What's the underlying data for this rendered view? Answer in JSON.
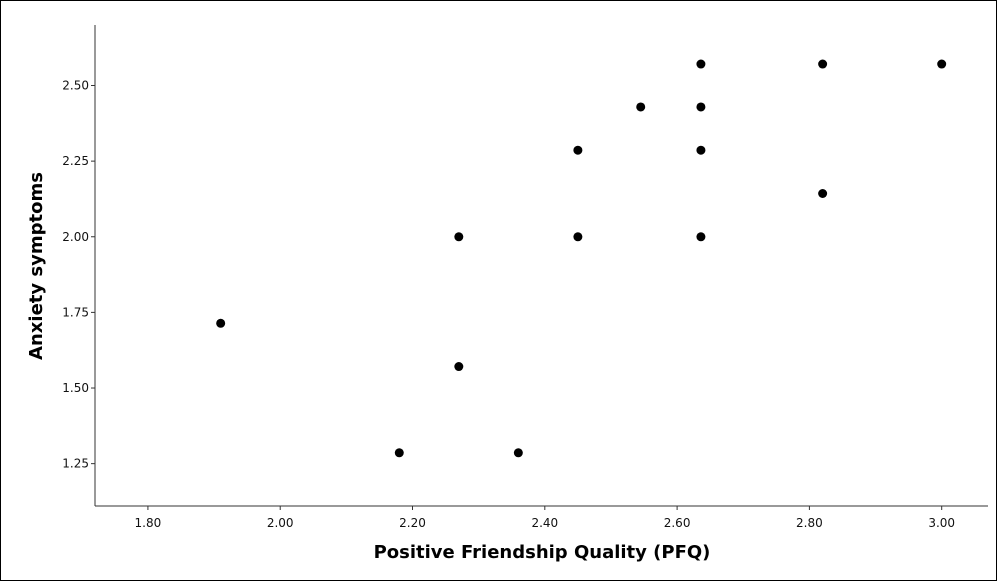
{
  "chart_data": {
    "type": "scatter",
    "title": "",
    "xlabel": "Positive Friendship Quality (PFQ)",
    "ylabel": "Anxiety symptoms",
    "xlim": [
      1.72,
      3.07
    ],
    "ylim": [
      1.11,
      2.7
    ],
    "x_ticks": [
      "1.80",
      "2.00",
      "2.20",
      "2.40",
      "2.60",
      "2.80",
      "3.00"
    ],
    "y_ticks": [
      "1.25",
      "1.50",
      "1.75",
      "2.00",
      "2.25",
      "2.50"
    ],
    "grid": false,
    "marker_color": "#000000",
    "points": [
      {
        "x": 1.91,
        "y": 1.714
      },
      {
        "x": 2.18,
        "y": 1.286
      },
      {
        "x": 2.27,
        "y": 2.0
      },
      {
        "x": 2.27,
        "y": 1.571
      },
      {
        "x": 2.36,
        "y": 1.286
      },
      {
        "x": 2.45,
        "y": 2.286
      },
      {
        "x": 2.45,
        "y": 2.0
      },
      {
        "x": 2.545,
        "y": 2.429
      },
      {
        "x": 2.636,
        "y": 2.571
      },
      {
        "x": 2.636,
        "y": 2.429
      },
      {
        "x": 2.636,
        "y": 2.286
      },
      {
        "x": 2.636,
        "y": 2.0
      },
      {
        "x": 2.82,
        "y": 2.571
      },
      {
        "x": 2.82,
        "y": 2.143
      },
      {
        "x": 3.0,
        "y": 2.571
      }
    ]
  }
}
